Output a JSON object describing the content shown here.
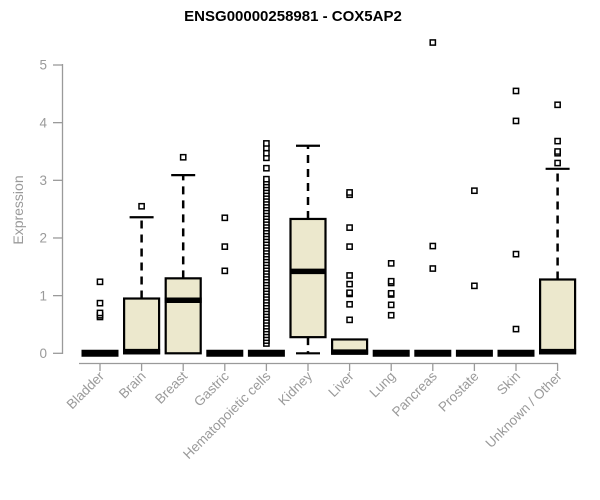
{
  "chart_data": {
    "type": "boxplot",
    "title": "ENSG00000258981 - COX5AP2",
    "ylabel": "Expression",
    "xlabel": "",
    "ylim": [
      0,
      5.5
    ],
    "yticks": [
      0,
      1,
      2,
      3,
      4,
      5
    ],
    "grid": false,
    "legend": false,
    "colors": {
      "box_fill": "#ece8cd",
      "box_stroke": "#000000",
      "median": "#000000",
      "whisker": "#000000",
      "outlier_stroke": "#000000",
      "outlier_fill": "#ffffff",
      "axis": "#9a9a9a",
      "tick_label": "#9a9a9a",
      "title": "#000000"
    },
    "categories": [
      "Bladder",
      "Brain",
      "Breast",
      "Gastric",
      "Hematopoietic cells",
      "Kidney",
      "Liver",
      "Lung",
      "Pancreas",
      "Prostate",
      "Skin",
      "Unknown / Other"
    ],
    "series": [
      {
        "label": "Bladder",
        "q1": 0,
        "median": 0,
        "q3": 0,
        "whisker_low": 0,
        "whisker_high": 0,
        "outliers": [
          0.63,
          0.66,
          0.7,
          0.87,
          1.24
        ]
      },
      {
        "label": "Brain",
        "q1": 0,
        "median": 0.03,
        "q3": 0.95,
        "whisker_low": 0,
        "whisker_high": 2.36,
        "outliers": [
          2.55
        ]
      },
      {
        "label": "Breast",
        "q1": 0,
        "median": 0.92,
        "q3": 1.3,
        "whisker_low": 0,
        "whisker_high": 3.09,
        "outliers": [
          3.4
        ]
      },
      {
        "label": "Gastric",
        "q1": 0,
        "median": 0,
        "q3": 0,
        "whisker_low": 0,
        "whisker_high": 0,
        "outliers": [
          1.43,
          1.85,
          2.35
        ]
      },
      {
        "label": "Hematopoietic cells",
        "q1": 0,
        "median": 0,
        "q3": 0,
        "whisker_low": 0,
        "whisker_high": 0,
        "outliers": [
          0.17,
          0.22,
          0.27,
          0.32,
          0.37,
          0.42,
          0.47,
          0.52,
          0.57,
          0.62,
          0.67,
          0.72,
          0.77,
          0.82,
          0.87,
          0.92,
          0.97,
          1.02,
          1.07,
          1.12,
          1.17,
          1.22,
          1.27,
          1.32,
          1.37,
          1.42,
          1.47,
          1.52,
          1.57,
          1.62,
          1.67,
          1.72,
          1.77,
          1.82,
          1.87,
          1.92,
          1.97,
          2.02,
          2.07,
          2.12,
          2.17,
          2.22,
          2.27,
          2.32,
          2.37,
          2.42,
          2.47,
          2.52,
          2.57,
          2.62,
          2.67,
          2.72,
          2.77,
          2.82,
          2.87,
          2.92,
          2.97,
          3.02,
          3.21,
          3.39,
          3.47,
          3.56,
          3.64
        ]
      },
      {
        "label": "Kidney",
        "q1": 0.28,
        "median": 1.42,
        "q3": 2.33,
        "whisker_low": 0,
        "whisker_high": 3.6,
        "outliers": []
      },
      {
        "label": "Liver",
        "q1": 0,
        "median": 0.02,
        "q3": 0.24,
        "whisker_low": 0,
        "whisker_high": 0.24,
        "outliers": [
          0.58,
          0.85,
          1.03,
          1.05,
          1.2,
          1.35,
          1.85,
          2.18,
          2.75,
          2.79
        ]
      },
      {
        "label": "Lung",
        "q1": 0,
        "median": 0,
        "q3": 0,
        "whisker_low": 0,
        "whisker_high": 0,
        "outliers": [
          0.66,
          0.84,
          1.02,
          1.04,
          1.22,
          1.25,
          1.56
        ]
      },
      {
        "label": "Pancreas",
        "q1": 0,
        "median": 0,
        "q3": 0,
        "whisker_low": 0,
        "whisker_high": 0,
        "outliers": [
          1.47,
          1.86,
          5.39
        ]
      },
      {
        "label": "Prostate",
        "q1": 0,
        "median": 0,
        "q3": 0,
        "whisker_low": 0,
        "whisker_high": 0,
        "outliers": [
          1.17,
          2.82
        ]
      },
      {
        "label": "Skin",
        "q1": 0,
        "median": 0,
        "q3": 0,
        "whisker_low": 0,
        "whisker_high": 0,
        "outliers": [
          0.42,
          1.72,
          4.03,
          4.55
        ]
      },
      {
        "label": "Unknown / Other",
        "q1": 0,
        "median": 0.03,
        "q3": 1.28,
        "whisker_low": 0,
        "whisker_high": 3.2,
        "outliers": [
          3.3,
          3.47,
          3.5,
          3.68,
          4.31
        ]
      }
    ]
  }
}
